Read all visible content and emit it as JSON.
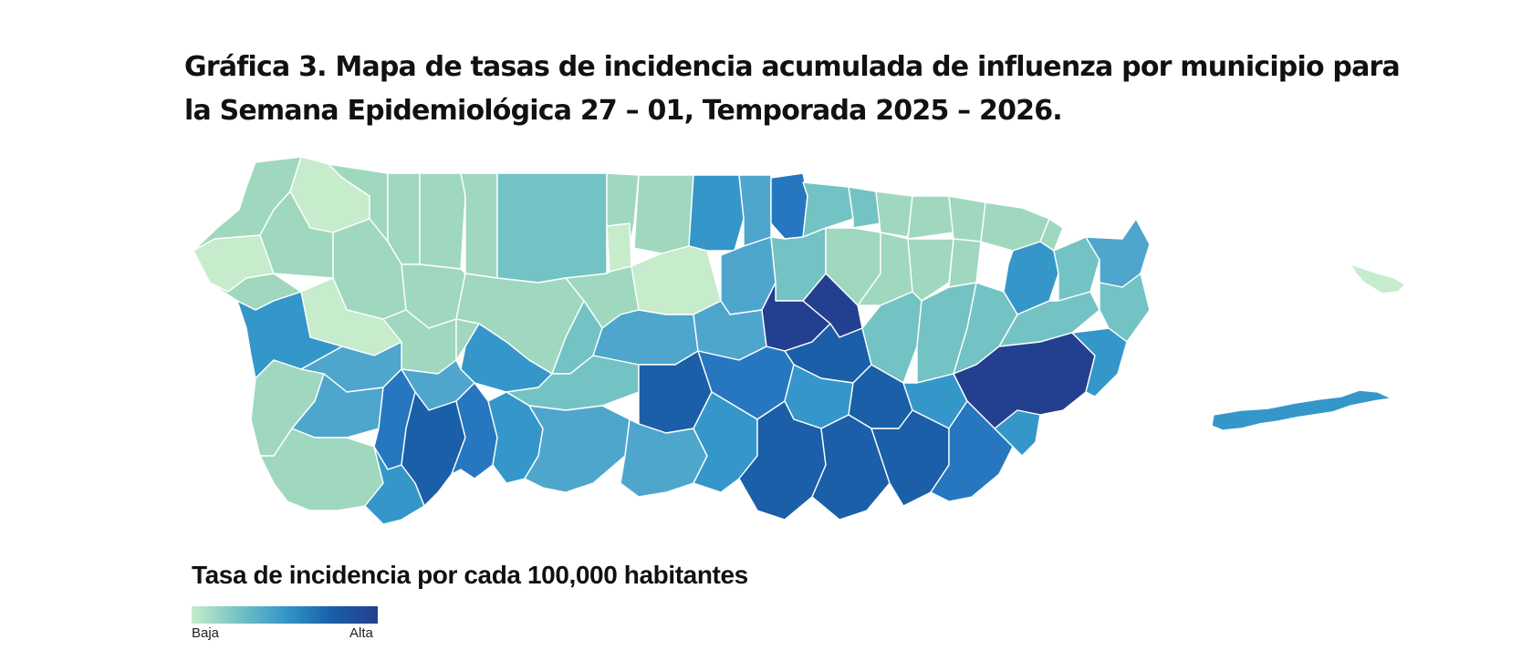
{
  "title": {
    "line1": "Gráfica 3. Mapa de tasas de incidencia acumulada de influenza por municipio para",
    "line2": "la Semana Epidemiológica 27 – 01, Temporada 2025 – 2026."
  },
  "legend": {
    "title": "Tasa de incidencia por cada 100,000 habitantes",
    "low_label": "Baja",
    "high_label": "Alta",
    "colors": [
      "#c6eccb",
      "#74c3c4",
      "#3597c9",
      "#1a5fa8",
      "#233f8f"
    ]
  },
  "map": {
    "type": "choropleth",
    "region": "Puerto Rico",
    "scale": [
      "#c6eccb",
      "#9fd8bf",
      "#74c3c4",
      "#4fa6cd",
      "#3597c9",
      "#2677bf",
      "#1a5fa8",
      "#233f8f"
    ]
  }
}
